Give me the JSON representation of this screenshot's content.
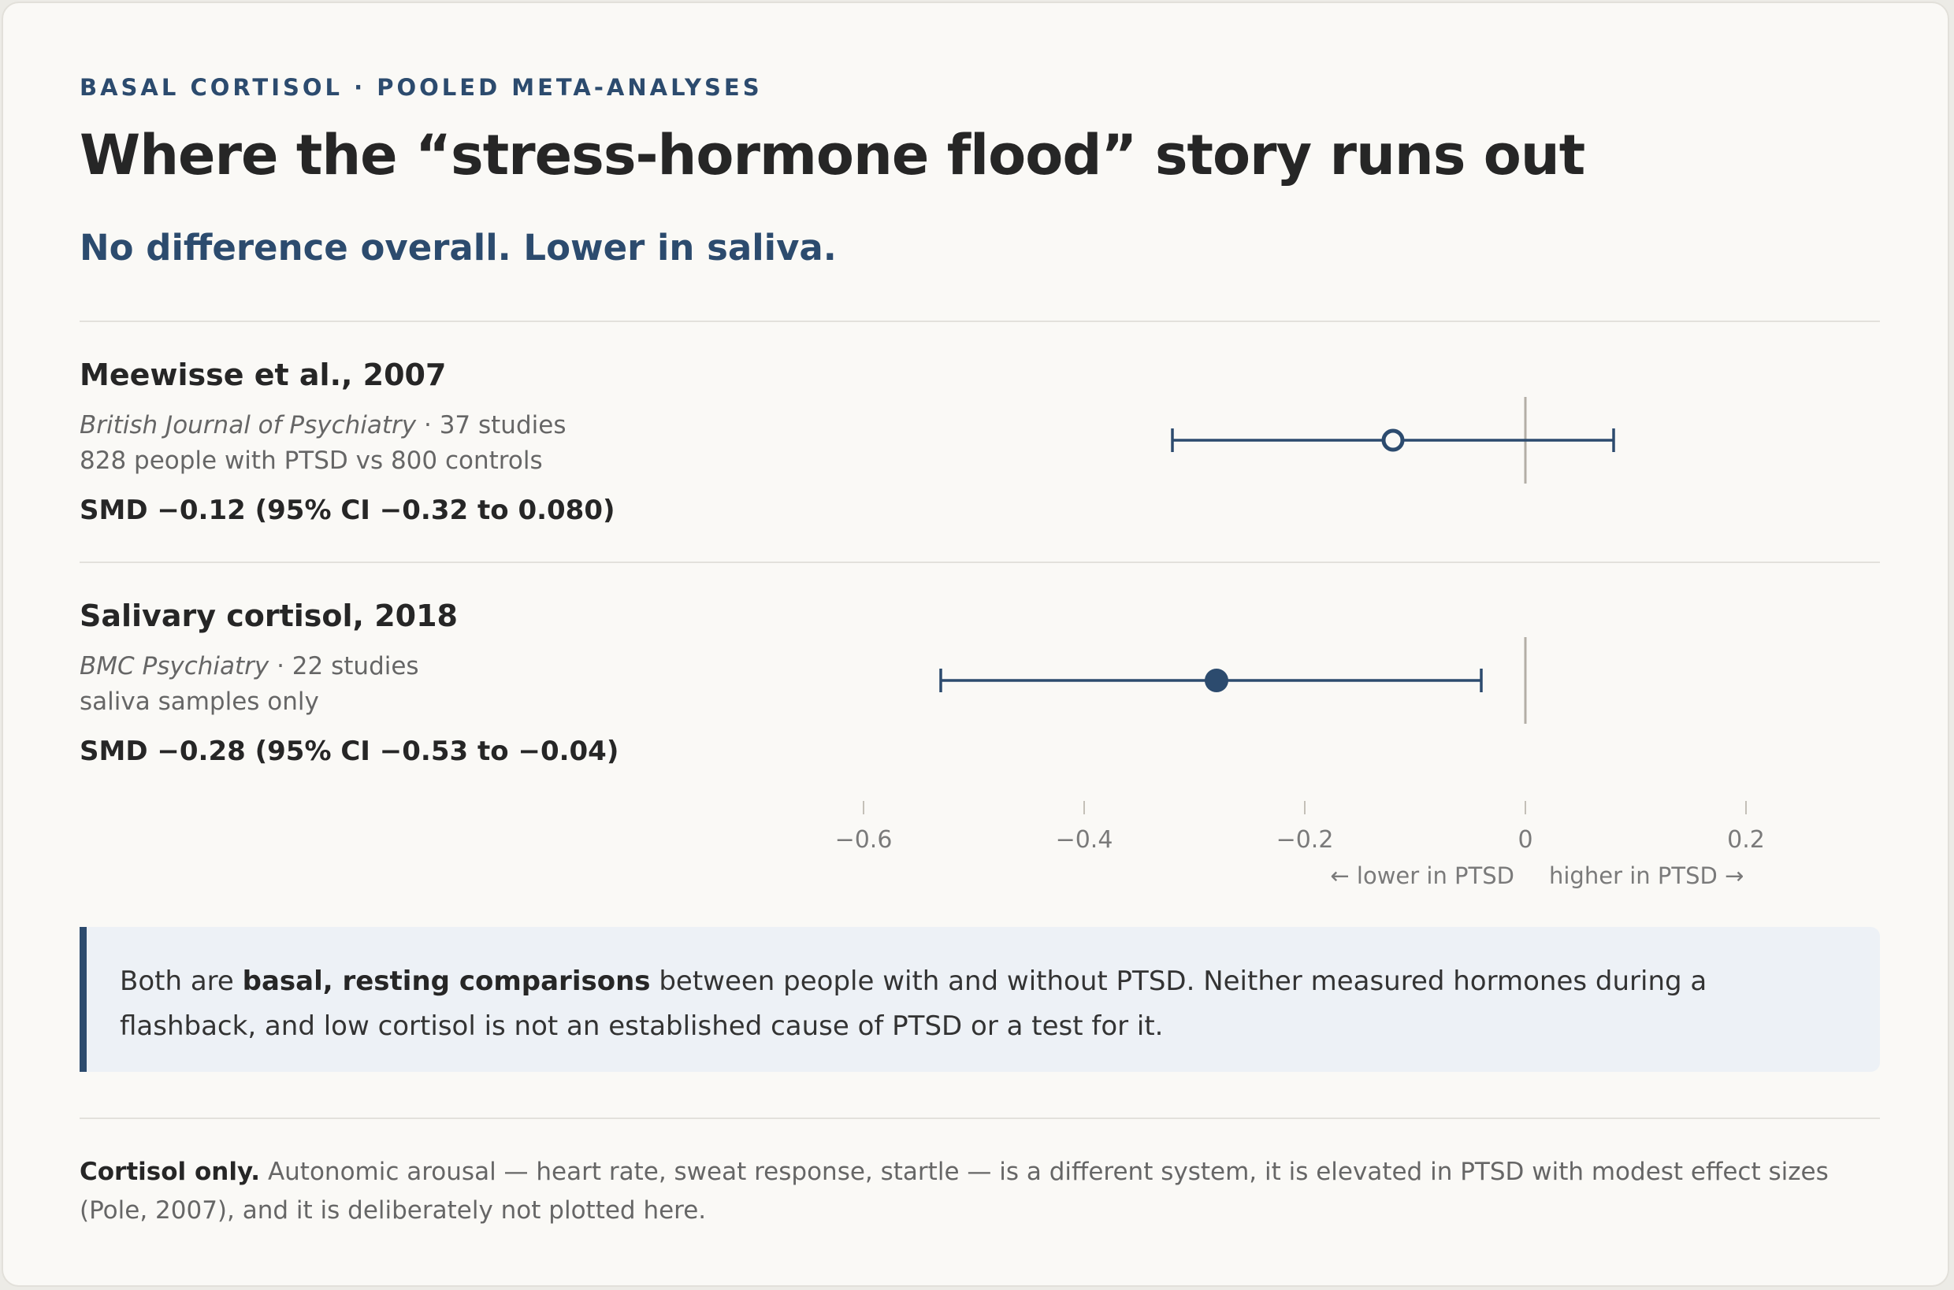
{
  "header": {
    "kicker": "BASAL CORTISOL · POOLED META-ANALYSES",
    "title": "Where the “stress-hormone flood” story runs out",
    "subtitle": "No difference overall. Lower in saliva."
  },
  "studies": [
    {
      "name": "Meewisse et al., 2007",
      "journal": "British Journal of Psychiatry",
      "studies_count": " · 37 studies",
      "detail": "828 people with PTSD vs 800 controls",
      "smd_text": "SMD −0.12 (95% CI −0.32 to 0.080)"
    },
    {
      "name": "Salivary cortisol, 2018",
      "journal": "BMC Psychiatry",
      "studies_count": " · 22 studies",
      "detail": "saliva samples only",
      "smd_text": "SMD −0.28 (95% CI −0.53 to −0.04)"
    }
  ],
  "chart_data": {
    "type": "forest",
    "series": [
      {
        "name": "Meewisse et al., 2007",
        "estimate": -0.12,
        "ci_low": -0.32,
        "ci_high": 0.08,
        "marker": "open"
      },
      {
        "name": "Salivary cortisol, 2018",
        "estimate": -0.28,
        "ci_low": -0.53,
        "ci_high": -0.04,
        "marker": "filled"
      }
    ],
    "xlim": [
      -0.6,
      0.2
    ],
    "xticks": [
      -0.6,
      -0.4,
      -0.2,
      0,
      0.2
    ],
    "xtick_labels": [
      "−0.6",
      "−0.4",
      "−0.2",
      "0",
      "0.2"
    ],
    "direction_left": "← lower in PTSD",
    "direction_right": "higher in PTSD →",
    "reference_line": 0,
    "grid": false
  },
  "callout": {
    "pre": "Both are ",
    "bold": "basal, resting comparisons",
    "post": " between people with and without PTSD. Neither measured hormones during a flashback, and low cortisol is not an established cause of PTSD or a test for it."
  },
  "footnote": {
    "bold": "Cortisol only.",
    "text": " Autonomic arousal — heart rate, sweat response, startle — is a different system, it is elevated in PTSD with modest effect sizes (Pole, 2007), and it is deliberately not plotted here."
  },
  "colors": {
    "accent": "#2c4b6e",
    "reference": "#b3aea6",
    "tick": "#c4c0b8",
    "tick_label": "#7a7a7a"
  }
}
